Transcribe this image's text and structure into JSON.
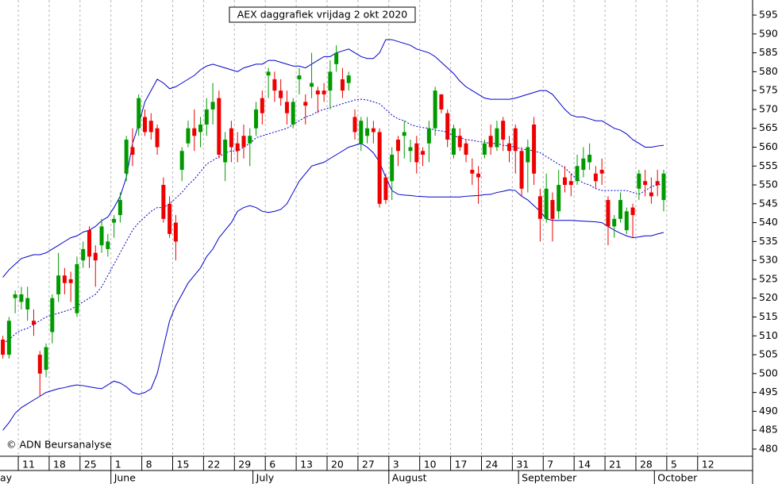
{
  "chart_data": {
    "type": "candlestick",
    "title": "AEX daggrafiek vrijdag 2 okt 2020",
    "credit": "© ADN Beursanalyse",
    "up_color": "#009a00",
    "down_color": "#ee0000",
    "xlim": [
      -0.46,
      121.4
    ],
    "ylim": [
      478.1,
      599
    ],
    "grid": true,
    "yticks": [
      480,
      485,
      490,
      495,
      500,
      505,
      510,
      515,
      520,
      525,
      530,
      535,
      540,
      545,
      550,
      555,
      560,
      565,
      570,
      575,
      580,
      585,
      590,
      595
    ],
    "xticks": [
      {
        "value": 3,
        "label": "11"
      },
      {
        "value": 8,
        "label": "18"
      },
      {
        "value": 13,
        "label": "25"
      },
      {
        "value": 18,
        "label": "1"
      },
      {
        "value": 23,
        "label": "8"
      },
      {
        "value": 28,
        "label": "15"
      },
      {
        "value": 33,
        "label": "22"
      },
      {
        "value": 38,
        "label": "29"
      },
      {
        "value": 43,
        "label": "6"
      },
      {
        "value": 48,
        "label": "13"
      },
      {
        "value": 53,
        "label": "20"
      },
      {
        "value": 58,
        "label": "27"
      },
      {
        "value": 63,
        "label": "3"
      },
      {
        "value": 68,
        "label": "10"
      },
      {
        "value": 73,
        "label": "17"
      },
      {
        "value": 78,
        "label": "24"
      },
      {
        "value": 83,
        "label": "31"
      },
      {
        "value": 88,
        "label": "7"
      },
      {
        "value": 93,
        "label": "14"
      },
      {
        "value": 98,
        "label": "21"
      },
      {
        "value": 103,
        "label": "28"
      },
      {
        "value": 108,
        "label": "5"
      },
      {
        "value": 113,
        "label": "12"
      }
    ],
    "months": [
      {
        "value": -3,
        "label": "ay"
      },
      {
        "value": 18,
        "label": "June"
      },
      {
        "value": 41,
        "label": "July"
      },
      {
        "value": 63,
        "label": "August"
      },
      {
        "value": 84,
        "label": "September"
      },
      {
        "value": 106,
        "label": "October"
      }
    ],
    "open": [
      509,
      505,
      520,
      519,
      517,
      514,
      505,
      501,
      511,
      521,
      526,
      525,
      516,
      530,
      538,
      532,
      534,
      533,
      540,
      542,
      553,
      560,
      565,
      568,
      567,
      565,
      550,
      545,
      540,
      554,
      561,
      565,
      564,
      566,
      570,
      573,
      556,
      565,
      561,
      563,
      561,
      565,
      573,
      579,
      578,
      575,
      572,
      566,
      578,
      572,
      576,
      575,
      575,
      575,
      582,
      578,
      577,
      568,
      561,
      563,
      565,
      564,
      552,
      551,
      562,
      563,
      559,
      561,
      559,
      561,
      565,
      574,
      569,
      558,
      563,
      561,
      554,
      553,
      558,
      563,
      560,
      567,
      561,
      565,
      559,
      556,
      566,
      547,
      541,
      546,
      543,
      552,
      551,
      551,
      554,
      556,
      553,
      554,
      546,
      539,
      541,
      538,
      544,
      549,
      551,
      548,
      551,
      546
    ],
    "high": [
      510,
      515,
      522,
      523,
      523,
      517,
      506,
      508,
      521,
      532,
      528,
      527,
      531,
      535,
      539,
      534,
      541,
      537,
      542,
      548,
      563,
      565,
      574,
      570,
      569,
      566,
      552,
      547,
      542,
      560,
      567,
      570,
      568,
      573,
      577,
      575,
      564,
      567,
      564,
      566,
      565,
      572,
      575,
      581,
      580,
      578,
      575,
      573,
      581,
      574,
      585,
      576,
      577,
      583,
      587,
      581,
      580,
      570,
      568,
      568,
      567,
      565,
      553,
      560,
      563,
      567,
      562,
      563,
      560,
      567,
      576,
      574,
      570,
      566,
      565,
      562,
      557,
      555,
      562,
      566,
      567,
      568,
      563,
      566,
      560,
      562,
      568,
      549,
      553,
      548,
      554,
      555,
      553,
      558,
      560,
      561,
      555,
      557,
      547,
      542,
      548,
      544,
      545,
      554,
      554,
      552,
      554,
      554
    ],
    "low": [
      504,
      504,
      516,
      517,
      514,
      510,
      494,
      499,
      508,
      519,
      521,
      519,
      515,
      528,
      528,
      523,
      532,
      531,
      536,
      540,
      551,
      555,
      563,
      563,
      562,
      558,
      540,
      536,
      530,
      551,
      560,
      559,
      560,
      563,
      566,
      557,
      551,
      556,
      556,
      557,
      555,
      563,
      566,
      573,
      572,
      571,
      566,
      565,
      574,
      566,
      573,
      569,
      572,
      570,
      580,
      573,
      575,
      562,
      559,
      561,
      561,
      544,
      545,
      546,
      555,
      557,
      556,
      553,
      555,
      556,
      563,
      569,
      560,
      557,
      559,
      556,
      550,
      545,
      557,
      558,
      559,
      559,
      556,
      553,
      547,
      548,
      550,
      535,
      540,
      535,
      541,
      548,
      547,
      550,
      552,
      554,
      549,
      550,
      534,
      536,
      540,
      537,
      536,
      546,
      547,
      545,
      547,
      543
    ],
    "close": [
      505,
      514,
      521,
      521,
      520,
      513,
      500,
      507,
      520,
      526,
      524,
      524,
      529,
      533,
      531,
      530,
      539,
      535,
      541,
      546,
      562,
      558,
      573,
      564,
      564,
      560,
      541,
      537,
      535,
      559,
      565,
      563,
      566,
      570,
      572,
      558,
      562,
      560,
      559,
      560,
      563,
      570,
      569,
      580,
      575,
      573,
      569,
      572,
      579,
      571,
      577,
      574,
      574,
      580,
      585,
      575,
      579,
      564,
      567,
      565,
      564,
      545,
      546,
      558,
      559,
      564,
      560,
      556,
      558,
      565,
      575,
      570,
      562,
      565,
      560,
      558,
      553,
      552,
      561,
      560,
      565,
      562,
      559,
      559,
      549,
      560,
      553,
      541,
      549,
      541,
      550,
      550,
      550,
      555,
      557,
      558,
      551,
      553,
      539,
      541,
      546,
      543,
      542,
      553,
      550,
      547,
      550,
      553
    ],
    "bands": [
      {
        "color": "#0000cc",
        "dashed": false,
        "values": [
          525.5,
          527.5,
          529,
          530.5,
          531,
          531.5,
          531.5,
          532,
          533,
          534,
          535,
          536,
          536.5,
          537.5,
          538,
          539,
          540.5,
          541.5,
          544,
          547,
          552,
          561,
          566,
          572,
          575,
          578,
          577,
          575.5,
          576,
          577,
          578,
          579,
          580.5,
          581.5,
          582,
          581.5,
          581,
          580.5,
          580,
          581,
          581.5,
          582,
          582,
          583,
          583,
          582.5,
          582,
          581.5,
          581.5,
          581,
          582,
          583,
          584,
          584,
          585,
          585.5,
          586,
          585,
          584,
          583.5,
          583.5,
          585,
          588.5,
          588.5,
          588,
          587.5,
          587,
          586,
          585.5,
          585,
          584,
          582.5,
          581,
          579.5,
          577.5,
          576,
          575,
          574,
          573,
          572.7,
          572.7,
          572.7,
          572.7,
          573,
          573.5,
          574,
          574.5,
          575,
          575,
          574,
          572,
          570,
          568.5,
          568,
          568,
          567.5,
          567,
          567,
          566,
          565,
          564.5,
          563.5,
          562,
          561,
          560,
          560,
          560.3,
          560.5
        ]
      },
      {
        "color": "#0000cc",
        "dashed": true,
        "values": [
          508,
          509,
          510.5,
          511.5,
          512,
          513,
          514,
          515,
          515.5,
          516,
          516.5,
          517,
          518,
          519,
          520,
          521,
          523,
          526,
          529,
          532,
          535,
          538,
          540,
          541.5,
          543,
          544,
          544,
          545,
          546.5,
          548,
          550,
          551.5,
          553.5,
          555.5,
          556.5,
          557.5,
          558.5,
          559,
          559,
          560,
          561,
          562.5,
          563,
          563.5,
          564,
          564.5,
          565,
          566,
          567,
          568,
          568.5,
          569.5,
          570,
          570.5,
          571,
          571.5,
          572,
          572.5,
          572.7,
          572.5,
          572,
          571.5,
          570,
          568.5,
          567.5,
          567,
          566,
          565.5,
          565.2,
          565,
          564.5,
          564.3,
          564,
          563,
          562.5,
          562,
          561.8,
          561.5,
          561.3,
          561,
          561,
          560.5,
          560.3,
          560,
          559.5,
          559.3,
          559,
          558.5,
          557.5,
          556.5,
          555.5,
          554.5,
          553,
          551.5,
          550.5,
          550,
          549,
          548.5,
          548.5,
          548.5,
          548.5,
          548.5,
          548,
          547.5,
          548.5,
          549.5,
          550,
          550.2
        ]
      },
      {
        "color": "#0000cc",
        "dashed": false,
        "values": [
          485,
          487,
          489.5,
          491,
          492,
          493,
          494,
          495,
          495.5,
          496,
          496.3,
          496.7,
          497,
          496.8,
          496.5,
          496.2,
          496,
          497,
          498,
          497.5,
          496.5,
          495,
          494.5,
          495,
          496,
          500,
          507,
          514,
          518,
          521,
          524,
          526,
          528,
          531,
          533,
          536,
          538,
          540,
          543,
          544,
          544.5,
          544,
          543,
          542.7,
          543,
          543.5,
          545,
          548,
          551,
          553,
          555,
          555.5,
          556,
          557,
          558,
          559,
          560,
          560.5,
          561,
          560,
          558.5,
          556,
          552,
          548.5,
          547.5,
          547.3,
          547.2,
          547,
          546.9,
          546.8,
          546.8,
          546.8,
          546.8,
          546.8,
          546.8,
          547,
          547.1,
          547.2,
          547.4,
          547.5,
          548,
          548.3,
          548.7,
          548.5,
          547,
          546,
          544.5,
          543,
          541,
          540.6,
          540.6,
          540.6,
          540.6,
          540.5,
          540.4,
          540.3,
          540.2,
          540,
          539,
          538,
          537.2,
          536.5,
          536,
          536.2,
          536.5,
          536.5,
          537,
          537.4
        ]
      }
    ]
  }
}
